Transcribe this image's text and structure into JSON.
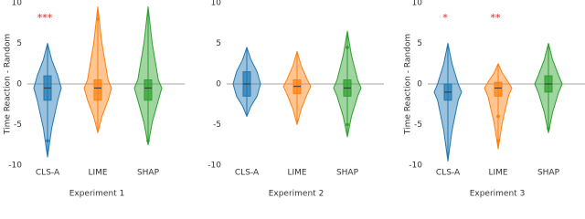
{
  "chart_data": [
    {
      "type": "violin",
      "xlabel": "Experiment 1",
      "ylabel": "Time Reaction - Random",
      "categories": [
        "CLS-A",
        "LIME",
        "SHAP"
      ],
      "colors": [
        "#1f77b4",
        "#ff7f0e",
        "#2ca02c"
      ],
      "annotations": [
        "***",
        null,
        null
      ],
      "ylim": [
        -10,
        10
      ],
      "yticks": [
        10,
        5,
        0,
        -5,
        -10
      ],
      "zero_line": true,
      "violins": [
        {
          "min": -9,
          "q1": -2,
          "median": -0.5,
          "q3": 1,
          "max": 5,
          "outliers": [
            -7
          ]
        },
        {
          "min": -6,
          "q1": -2,
          "median": -0.5,
          "q3": 0.5,
          "max": 9.5,
          "outliers": [
            8
          ]
        },
        {
          "min": -7.5,
          "q1": -2,
          "median": -0.5,
          "q3": 0.5,
          "max": 9.5,
          "outliers": [
            -7
          ]
        }
      ]
    },
    {
      "type": "violin",
      "xlabel": "Experiment 2",
      "categories": [
        "CLS-A",
        "LIME",
        "SHAP"
      ],
      "colors": [
        "#1f77b4",
        "#ff7f0e",
        "#2ca02c"
      ],
      "ylim": [
        -10,
        10
      ],
      "yticks": [
        10,
        5,
        0,
        -5,
        -10
      ],
      "zero_line": true,
      "violins": [
        {
          "min": -4,
          "q1": -1.5,
          "median": 0,
          "q3": 1.5,
          "max": 4.5,
          "outliers": []
        },
        {
          "min": -5,
          "q1": -1.2,
          "median": -0.3,
          "q3": 0.5,
          "max": 4,
          "outliers": []
        },
        {
          "min": -6.5,
          "q1": -1.5,
          "median": -0.5,
          "q3": 0.5,
          "max": 6.5,
          "outliers": [
            -5,
            4.5
          ]
        }
      ]
    },
    {
      "type": "violin",
      "xlabel": "Experiment 3",
      "ylabel": "Time Reaction - Random",
      "categories": [
        "CLS-A",
        "LIME",
        "SHAP"
      ],
      "colors": [
        "#1f77b4",
        "#ff7f0e",
        "#2ca02c"
      ],
      "annotations": [
        "*",
        "**",
        null
      ],
      "ylim": [
        -10,
        10
      ],
      "yticks": [
        10,
        5,
        0,
        -5,
        -10
      ],
      "zero_line": true,
      "violins": [
        {
          "min": -9.5,
          "q1": -2,
          "median": -1,
          "q3": 0,
          "max": 5,
          "outliers": []
        },
        {
          "min": -8,
          "q1": -1.5,
          "median": -0.5,
          "q3": 0.2,
          "max": 2.5,
          "outliers": [
            -4,
            -7
          ]
        },
        {
          "min": -6,
          "q1": -1,
          "median": 0,
          "q3": 1,
          "max": 5,
          "outliers": [
            -5.5
          ]
        }
      ]
    }
  ]
}
